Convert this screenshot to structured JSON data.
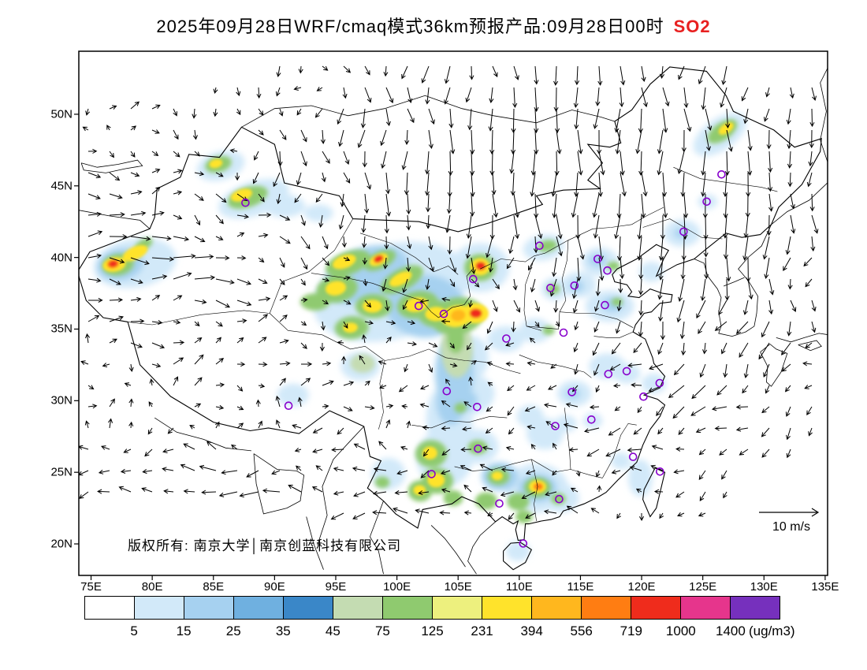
{
  "title": {
    "main": "2025年09月28日WRF/cmaq模式36km预报产品:09月28日00时",
    "species": "SO2",
    "species_color": "#e82020"
  },
  "map": {
    "copyright": "版权所有: 南京大学│南京创蓝科技有限公司",
    "wind_ref_label": "10 m/s"
  },
  "chart_data": {
    "type": "heatmap",
    "title": "2025年09月28日WRF/cmaq模式36km预报产品:09月28日00时 SO2",
    "pollutant": "SO2",
    "units_label": "(ug/m3)",
    "lon_range": [
      74.0,
      135.2
    ],
    "lat_range": [
      17.8,
      54.4
    ],
    "lon_tick_labels": [
      "75E",
      "80E",
      "85E",
      "90E",
      "95E",
      "100E",
      "105E",
      "110E",
      "115E",
      "120E",
      "125E",
      "130E",
      "135E"
    ],
    "lat_tick_labels": [
      "20N",
      "25N",
      "30N",
      "35N",
      "40N",
      "45N",
      "50N"
    ],
    "grid": false,
    "legend_position": "bottom",
    "colorbar": {
      "levels": [
        5,
        15,
        25,
        35,
        45,
        75,
        125,
        231,
        394,
        556,
        719,
        1000,
        1400
      ],
      "colors": [
        "#ffffff",
        "#d2e9f9",
        "#a6d1f0",
        "#6fb0e0",
        "#3a87c8",
        "#c4dcb2",
        "#8fca6f",
        "#edf07e",
        "#ffe32b",
        "#ffb71e",
        "#ff7d12",
        "#ef2c1c",
        "#e6358c",
        "#7630bd"
      ]
    },
    "city_marker_color": "#8800cc",
    "wind": {
      "reference_ms": 10,
      "label": "10 m/s"
    },
    "hotspot_format": "[lon, lat, rx_deg, ry_deg, color_index, rotation_deg]",
    "hotspots": [
      [
        78.6,
        39.6,
        3.4,
        1.7,
        1,
        -10
      ],
      [
        77.4,
        39.5,
        1.9,
        1.1,
        2,
        -10
      ],
      [
        77.2,
        39.5,
        1.3,
        0.75,
        6,
        -10
      ],
      [
        76.9,
        39.5,
        0.95,
        0.5,
        8,
        -10
      ],
      [
        76.8,
        39.55,
        0.5,
        0.3,
        10,
        -10
      ],
      [
        76.8,
        39.55,
        0.34,
        0.22,
        11,
        -10
      ],
      [
        78.6,
        40.3,
        1.1,
        0.45,
        8,
        -25
      ],
      [
        79.3,
        40.9,
        0.8,
        0.35,
        6,
        -30
      ],
      [
        85.6,
        46.4,
        2.0,
        1.0,
        1,
        -15
      ],
      [
        85.4,
        46.5,
        1.1,
        0.55,
        6,
        -15
      ],
      [
        85.2,
        46.55,
        0.55,
        0.3,
        8,
        -15
      ],
      [
        88.3,
        44.1,
        3.0,
        1.2,
        1,
        -18
      ],
      [
        87.8,
        44.2,
        1.7,
        0.7,
        6,
        -18
      ],
      [
        87.3,
        44.35,
        0.9,
        0.4,
        8,
        -18
      ],
      [
        90.8,
        43.6,
        1.7,
        0.8,
        1,
        0
      ],
      [
        93.6,
        43.1,
        1.2,
        0.6,
        1,
        0
      ],
      [
        99.5,
        37.6,
        6.5,
        3.3,
        1,
        -15
      ],
      [
        97.5,
        38.8,
        3.6,
        1.9,
        2,
        -20
      ],
      [
        102.3,
        36.6,
        3.2,
        2.2,
        2,
        0
      ],
      [
        96.0,
        39.6,
        1.9,
        0.8,
        6,
        -20
      ],
      [
        95.7,
        39.7,
        1.0,
        0.45,
        8,
        -20
      ],
      [
        98.6,
        39.8,
        1.4,
        0.6,
        6,
        -25
      ],
      [
        98.5,
        39.85,
        0.8,
        0.38,
        8,
        -25
      ],
      [
        98.5,
        39.9,
        0.42,
        0.24,
        11,
        -25
      ],
      [
        95.1,
        37.8,
        1.7,
        0.95,
        6,
        -10
      ],
      [
        95.0,
        37.85,
        0.85,
        0.5,
        8,
        -10
      ],
      [
        100.4,
        38.45,
        1.9,
        0.75,
        6,
        -28
      ],
      [
        100.3,
        38.5,
        1.0,
        0.4,
        8,
        -28
      ],
      [
        98.1,
        36.6,
        1.5,
        0.85,
        6,
        0
      ],
      [
        98.0,
        36.6,
        0.8,
        0.45,
        8,
        0
      ],
      [
        93.3,
        36.9,
        1.2,
        0.6,
        6,
        0
      ],
      [
        96.3,
        35.1,
        1.4,
        0.8,
        6,
        -5
      ],
      [
        96.2,
        35.1,
        0.6,
        0.35,
        8,
        -5
      ],
      [
        101.7,
        36.7,
        1.7,
        0.95,
        6,
        -10
      ],
      [
        101.6,
        36.7,
        0.95,
        0.5,
        8,
        -10
      ],
      [
        103.3,
        36.05,
        1.6,
        0.95,
        6,
        0
      ],
      [
        103.2,
        36.05,
        0.9,
        0.5,
        8,
        0
      ],
      [
        104.9,
        35.9,
        2.2,
        1.3,
        6,
        -10
      ],
      [
        104.9,
        35.9,
        1.3,
        0.75,
        8,
        -10
      ],
      [
        105.0,
        35.95,
        0.6,
        0.4,
        9,
        -10
      ],
      [
        106.4,
        36.1,
        1.1,
        0.7,
        8,
        0
      ],
      [
        106.45,
        36.1,
        0.5,
        0.33,
        11,
        0
      ],
      [
        106.8,
        39.3,
        2.4,
        1.7,
        1,
        0
      ],
      [
        106.8,
        39.3,
        1.3,
        0.95,
        6,
        0
      ],
      [
        106.8,
        39.35,
        0.8,
        0.6,
        8,
        0
      ],
      [
        106.85,
        39.4,
        0.42,
        0.3,
        11,
        0
      ],
      [
        104.9,
        33.6,
        1.3,
        2.0,
        5,
        0
      ],
      [
        104.8,
        34.3,
        0.7,
        1.0,
        6,
        0
      ],
      [
        104.7,
        31.9,
        1.6,
        2.6,
        2,
        0
      ],
      [
        104.3,
        28.7,
        1.9,
        2.6,
        1,
        0
      ],
      [
        104.4,
        29.9,
        1.2,
        1.6,
        2,
        0
      ],
      [
        103.9,
        26.0,
        2.3,
        2.0,
        1,
        0
      ],
      [
        105.9,
        30.4,
        2.1,
        1.4,
        1,
        -10
      ],
      [
        105.6,
        30.0,
        1.0,
        0.7,
        2,
        -10
      ],
      [
        105.2,
        29.5,
        0.5,
        0.35,
        6,
        -10
      ],
      [
        97.0,
        32.4,
        1.6,
        1.0,
        1,
        0
      ],
      [
        97.2,
        32.6,
        1.0,
        0.65,
        5,
        0
      ],
      [
        91.5,
        30.4,
        1.3,
        0.8,
        1,
        0
      ],
      [
        102.8,
        26.3,
        1.3,
        0.95,
        6,
        0
      ],
      [
        102.7,
        26.35,
        0.6,
        0.45,
        8,
        0
      ],
      [
        103.3,
        24.4,
        1.3,
        0.9,
        6,
        0
      ],
      [
        103.2,
        24.45,
        0.7,
        0.5,
        8,
        0
      ],
      [
        101.9,
        23.7,
        1.0,
        0.75,
        6,
        0
      ],
      [
        101.85,
        23.75,
        0.5,
        0.35,
        8,
        0
      ],
      [
        104.6,
        23.2,
        0.8,
        0.55,
        6,
        0
      ],
      [
        99.3,
        24.9,
        1.4,
        1.1,
        1,
        0
      ],
      [
        98.8,
        24.3,
        0.6,
        0.4,
        6,
        0
      ],
      [
        106.6,
        26.8,
        1.7,
        1.2,
        1,
        0
      ],
      [
        106.6,
        26.75,
        0.8,
        0.5,
        6,
        0
      ],
      [
        108.4,
        24.7,
        1.5,
        1.0,
        2,
        0
      ],
      [
        108.3,
        24.7,
        0.9,
        0.6,
        6,
        0
      ],
      [
        108.2,
        24.75,
        0.45,
        0.3,
        8,
        0
      ],
      [
        111.4,
        23.9,
        2.6,
        1.7,
        1,
        0
      ],
      [
        111.5,
        23.9,
        1.6,
        1.0,
        2,
        0
      ],
      [
        111.5,
        23.95,
        1.1,
        0.7,
        6,
        0
      ],
      [
        111.5,
        24.0,
        0.7,
        0.45,
        8,
        0
      ],
      [
        111.55,
        24.0,
        0.38,
        0.26,
        10,
        0
      ],
      [
        107.3,
        23.0,
        0.9,
        0.6,
        6,
        0
      ],
      [
        109.9,
        22.95,
        0.9,
        0.6,
        6,
        0
      ],
      [
        113.4,
        23.2,
        1.5,
        1.0,
        1,
        0
      ],
      [
        113.2,
        23.15,
        0.6,
        0.4,
        6,
        0
      ],
      [
        110.4,
        21.9,
        0.7,
        0.45,
        6,
        0
      ],
      [
        109.9,
        19.5,
        1.0,
        0.7,
        1,
        0
      ],
      [
        112.1,
        27.7,
        1.5,
        1.1,
        1,
        0
      ],
      [
        110.9,
        28.9,
        1.1,
        0.8,
        1,
        0
      ],
      [
        113.8,
        28.4,
        0.9,
        0.6,
        1,
        0
      ],
      [
        114.5,
        30.5,
        1.4,
        0.9,
        1,
        0
      ],
      [
        114.4,
        30.5,
        0.6,
        0.35,
        2,
        0
      ],
      [
        117.2,
        32.4,
        1.5,
        0.9,
        1,
        0
      ],
      [
        118.8,
        31.9,
        1.1,
        0.7,
        1,
        0
      ],
      [
        121.0,
        31.2,
        1.0,
        0.7,
        1,
        0
      ],
      [
        119.9,
        24.6,
        1.0,
        1.3,
        1,
        0
      ],
      [
        118.3,
        25.8,
        0.8,
        0.6,
        1,
        0
      ],
      [
        116.0,
        28.6,
        0.8,
        0.55,
        1,
        0
      ],
      [
        117.4,
        36.6,
        2.0,
        1.1,
        1,
        0
      ],
      [
        117.6,
        36.7,
        0.9,
        0.5,
        2,
        0
      ],
      [
        118.0,
        36.9,
        0.45,
        0.28,
        6,
        0
      ],
      [
        114.9,
        38.1,
        1.4,
        0.9,
        1,
        0
      ],
      [
        114.7,
        38.0,
        0.6,
        0.4,
        2,
        0
      ],
      [
        116.6,
        39.7,
        1.5,
        1.0,
        1,
        0
      ],
      [
        116.4,
        39.8,
        0.7,
        0.45,
        2,
        0
      ],
      [
        117.7,
        39.4,
        0.5,
        0.3,
        6,
        0
      ],
      [
        112.9,
        37.8,
        1.1,
        0.8,
        1,
        0
      ],
      [
        112.8,
        37.8,
        0.5,
        0.35,
        6,
        0
      ],
      [
        112.0,
        40.7,
        1.7,
        0.9,
        1,
        -10
      ],
      [
        112.3,
        40.8,
        0.8,
        0.4,
        6,
        -10
      ],
      [
        111.3,
        34.9,
        1.3,
        0.85,
        1,
        0
      ],
      [
        112.4,
        34.9,
        0.5,
        0.3,
        6,
        0
      ],
      [
        108.9,
        34.3,
        1.5,
        0.9,
        1,
        0
      ],
      [
        106.2,
        33.0,
        1.3,
        1.5,
        1,
        0
      ],
      [
        120.8,
        39.0,
        1.0,
        0.7,
        1,
        0
      ],
      [
        126.4,
        48.6,
        2.5,
        1.1,
        1,
        -35
      ],
      [
        126.6,
        48.8,
        1.4,
        0.6,
        6,
        -35
      ],
      [
        126.9,
        49.0,
        0.7,
        0.32,
        8,
        -35
      ],
      [
        123.3,
        41.7,
        1.5,
        0.95,
        1,
        0
      ],
      [
        123.2,
        41.7,
        0.55,
        0.35,
        2,
        0
      ],
      [
        125.4,
        43.9,
        0.8,
        0.5,
        1,
        0
      ]
    ],
    "cities": [
      [
        116.41,
        39.9
      ],
      [
        117.2,
        39.09
      ],
      [
        114.51,
        38.04
      ],
      [
        112.55,
        37.87
      ],
      [
        111.65,
        40.82
      ],
      [
        123.43,
        41.8
      ],
      [
        125.32,
        43.9
      ],
      [
        126.53,
        45.8
      ],
      [
        121.47,
        31.23
      ],
      [
        118.78,
        32.06
      ],
      [
        120.15,
        30.28
      ],
      [
        117.28,
        31.86
      ],
      [
        119.3,
        26.08
      ],
      [
        115.89,
        28.68
      ],
      [
        117.0,
        36.67
      ],
      [
        113.62,
        34.75
      ],
      [
        114.3,
        30.6
      ],
      [
        112.94,
        28.23
      ],
      [
        113.26,
        23.13
      ],
      [
        108.37,
        22.82
      ],
      [
        110.32,
        20.03
      ],
      [
        104.07,
        30.67
      ],
      [
        106.55,
        29.56
      ],
      [
        106.63,
        26.65
      ],
      [
        102.83,
        24.88
      ],
      [
        91.14,
        29.65
      ],
      [
        108.94,
        34.34
      ],
      [
        103.83,
        36.06
      ],
      [
        101.78,
        36.62
      ],
      [
        106.23,
        38.49
      ],
      [
        87.62,
        43.82
      ],
      [
        121.5,
        25.05
      ]
    ]
  }
}
